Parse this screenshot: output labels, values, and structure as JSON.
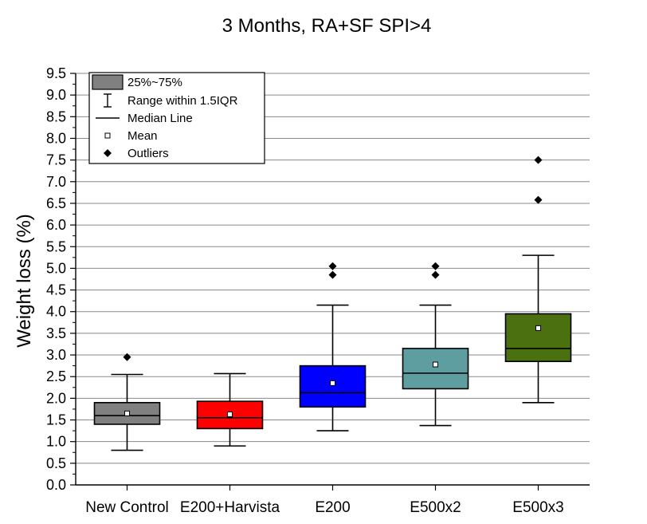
{
  "chart_data": {
    "type": "box",
    "title": "3 Months, RA+SF SPI>4",
    "xlabel": "",
    "ylabel": "Weight loss (%)",
    "ylim": [
      0,
      9.5
    ],
    "yticks": [
      "0.0",
      "0.5",
      "1.0",
      "1.5",
      "2.0",
      "2.5",
      "3.0",
      "3.5",
      "4.0",
      "4.5",
      "5.0",
      "5.5",
      "6.0",
      "6.5",
      "7.0",
      "7.5",
      "8.0",
      "8.5",
      "9.0",
      "9.5"
    ],
    "grid": true,
    "legend_position": "top-left",
    "legend": [
      {
        "key": "box",
        "label": "25%~75%"
      },
      {
        "key": "whisker",
        "label": "Range within 1.5IQR"
      },
      {
        "key": "median",
        "label": "Median Line"
      },
      {
        "key": "mean",
        "label": "Mean"
      },
      {
        "key": "outlier",
        "label": "Outliers"
      }
    ],
    "categories": [
      "New Control",
      "E200+Harvista",
      "E200",
      "E500x2",
      "E500x3"
    ],
    "series": [
      {
        "color": "#808080",
        "whisker_low": 0.8,
        "q1": 1.4,
        "median": 1.6,
        "q3": 1.9,
        "whisker_high": 2.55,
        "mean": 1.65,
        "outliers": [
          2.95
        ]
      },
      {
        "color": "#ff0000",
        "whisker_low": 0.9,
        "q1": 1.3,
        "median": 1.55,
        "q3": 1.93,
        "whisker_high": 2.57,
        "mean": 1.63,
        "outliers": []
      },
      {
        "color": "#0000ff",
        "whisker_low": 1.25,
        "q1": 1.8,
        "median": 2.13,
        "q3": 2.75,
        "whisker_high": 4.15,
        "mean": 2.35,
        "outliers": [
          4.85,
          5.05
        ]
      },
      {
        "color": "#5f9ea0",
        "whisker_low": 1.37,
        "q1": 2.22,
        "median": 2.58,
        "q3": 3.15,
        "whisker_high": 4.15,
        "mean": 2.78,
        "outliers": [
          4.85,
          5.05
        ]
      },
      {
        "color": "#4b7010",
        "whisker_low": 1.9,
        "q1": 2.85,
        "median": 3.15,
        "q3": 3.95,
        "whisker_high": 5.3,
        "mean": 3.62,
        "outliers": [
          6.58,
          7.5
        ]
      }
    ]
  }
}
